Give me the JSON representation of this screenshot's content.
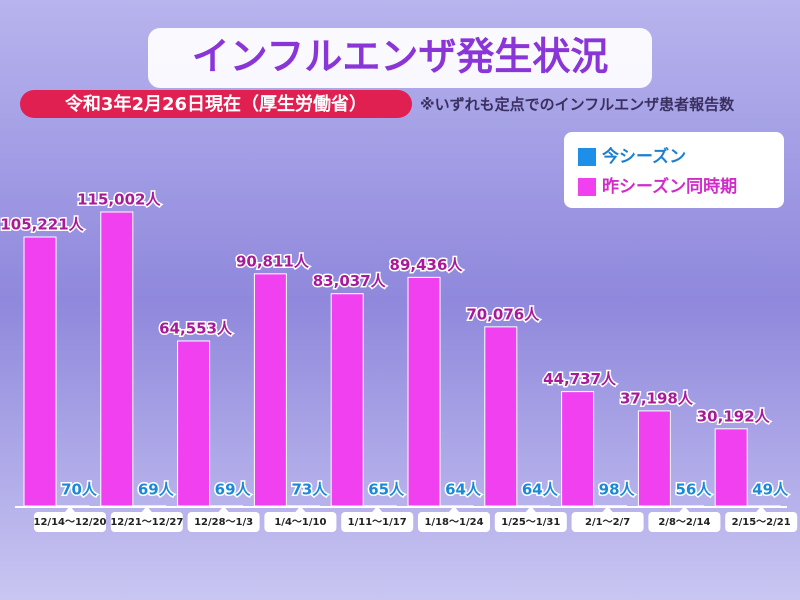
{
  "chart_data": {
    "type": "bar",
    "title": "インフルエンザ発生状況",
    "subtitle": "令和3年2月26日現在（厚生労働省）",
    "note": "※いずれも定点でのインフルエンザ患者報告数",
    "categories": [
      "12/14～12/20",
      "12/21～12/27",
      "12/28～1/3",
      "1/4～1/10",
      "1/11～1/17",
      "1/18～1/24",
      "1/25～1/31",
      "2/1～2/7",
      "2/8～2/14",
      "2/15～2/21"
    ],
    "series": [
      {
        "name": "昨シーズン同時期",
        "color": "#f040f0",
        "values": [
          105221,
          115002,
          64553,
          90811,
          83037,
          89436,
          70076,
          44737,
          37198,
          30192
        ],
        "value_labels": [
          "105,221人",
          "115,002人",
          "64,553人",
          "90,811人",
          "83,037人",
          "89,436人",
          "70,076人",
          "44,737人",
          "37,198人",
          "30,192人"
        ]
      },
      {
        "name": "今シーズン",
        "color": "#1e8fe8",
        "values": [
          70,
          69,
          69,
          73,
          65,
          64,
          64,
          98,
          56,
          49
        ],
        "value_labels": [
          "70人",
          "69人",
          "69人",
          "73人",
          "65人",
          "64人",
          "64人",
          "98人",
          "56人",
          "49人"
        ]
      }
    ]
  }
}
